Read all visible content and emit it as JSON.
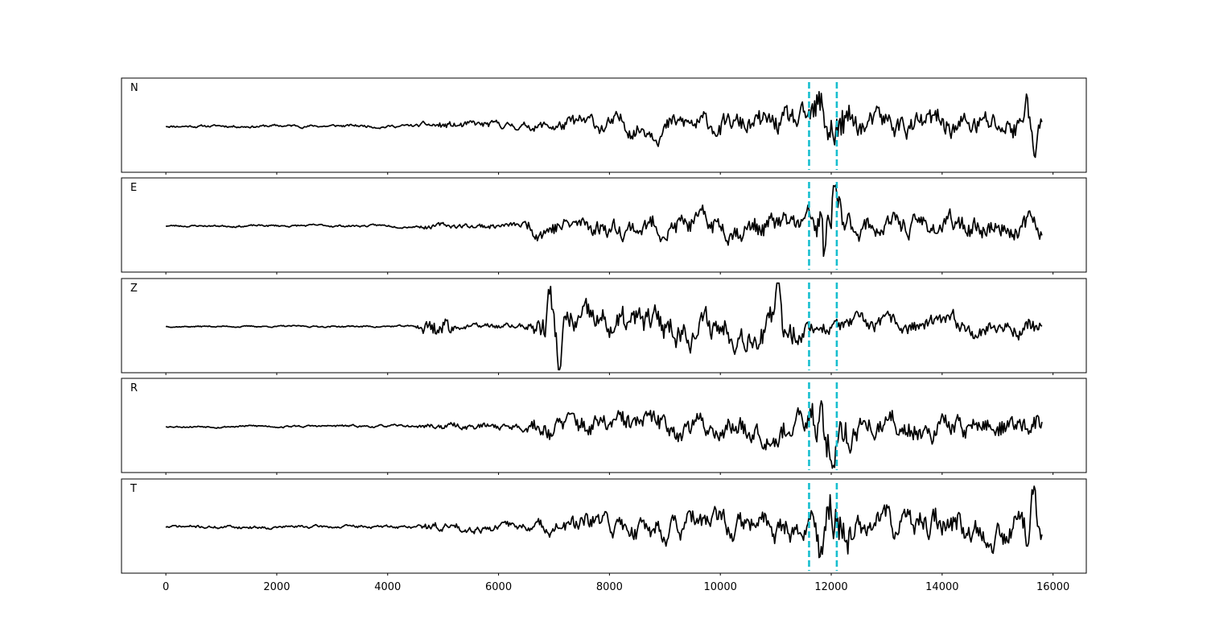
{
  "chart_data": {
    "type": "line",
    "xlim": [
      -800,
      16600
    ],
    "x_ticks": [
      0,
      2000,
      4000,
      6000,
      8000,
      10000,
      12000,
      14000,
      16000
    ],
    "x_tick_labels": [
      "0",
      "2000",
      "4000",
      "6000",
      "8000",
      "10000",
      "12000",
      "14000",
      "16000"
    ],
    "n_samples": 15800,
    "sample_step": 20,
    "grid": false,
    "picks": [
      11600,
      12100
    ],
    "pick_color": "#17becf",
    "trace_color": "#000000",
    "panels": [
      {
        "label": "N",
        "seed": 11,
        "envelope": [
          [
            0,
            0.04
          ],
          [
            4500,
            0.05
          ],
          [
            4700,
            0.12
          ],
          [
            6500,
            0.12
          ],
          [
            7500,
            0.28
          ],
          [
            10500,
            0.35
          ],
          [
            11600,
            0.45
          ],
          [
            11800,
            1.0
          ],
          [
            12100,
            0.9
          ],
          [
            12500,
            0.4
          ],
          [
            15800,
            0.45
          ]
        ],
        "bursts": [
          [
            15520,
            70,
            0.8
          ],
          [
            15660,
            60,
            -0.7
          ]
        ]
      },
      {
        "label": "E",
        "seed": 23,
        "envelope": [
          [
            0,
            0.03
          ],
          [
            4500,
            0.04
          ],
          [
            4700,
            0.08
          ],
          [
            6400,
            0.1
          ],
          [
            6600,
            0.3
          ],
          [
            11500,
            0.38
          ],
          [
            11800,
            0.7
          ],
          [
            12100,
            0.8
          ],
          [
            12400,
            0.35
          ],
          [
            15800,
            0.35
          ]
        ],
        "bursts": [
          [
            12060,
            50,
            1.1
          ],
          [
            11880,
            60,
            -0.9
          ]
        ]
      },
      {
        "label": "Z",
        "seed": 37,
        "envelope": [
          [
            0,
            0.02
          ],
          [
            4500,
            0.03
          ],
          [
            4650,
            0.35
          ],
          [
            5100,
            0.35
          ],
          [
            5250,
            0.08
          ],
          [
            6500,
            0.1
          ],
          [
            6700,
            0.5
          ],
          [
            11300,
            0.5
          ],
          [
            11600,
            0.25
          ],
          [
            15800,
            0.3
          ]
        ],
        "bursts": [
          [
            7100,
            80,
            -1.0
          ],
          [
            6920,
            70,
            0.8
          ],
          [
            11050,
            60,
            1.0
          ]
        ]
      },
      {
        "label": "R",
        "seed": 53,
        "envelope": [
          [
            0,
            0.03
          ],
          [
            4500,
            0.04
          ],
          [
            4700,
            0.1
          ],
          [
            6500,
            0.12
          ],
          [
            6700,
            0.35
          ],
          [
            11500,
            0.42
          ],
          [
            11800,
            0.8
          ],
          [
            12150,
            0.9
          ],
          [
            12500,
            0.4
          ],
          [
            15800,
            0.38
          ]
        ],
        "bursts": [
          [
            11830,
            50,
            1.0
          ],
          [
            12040,
            50,
            -1.1
          ]
        ]
      },
      {
        "label": "T",
        "seed": 71,
        "envelope": [
          [
            0,
            0.05
          ],
          [
            4500,
            0.05
          ],
          [
            4700,
            0.14
          ],
          [
            6500,
            0.14
          ],
          [
            7500,
            0.35
          ],
          [
            11600,
            0.45
          ],
          [
            11800,
            1.0
          ],
          [
            12150,
            0.95
          ],
          [
            12500,
            0.45
          ],
          [
            15800,
            0.5
          ]
        ],
        "bursts": [
          [
            15650,
            70,
            0.8
          ],
          [
            15540,
            60,
            -0.8
          ]
        ]
      }
    ]
  }
}
